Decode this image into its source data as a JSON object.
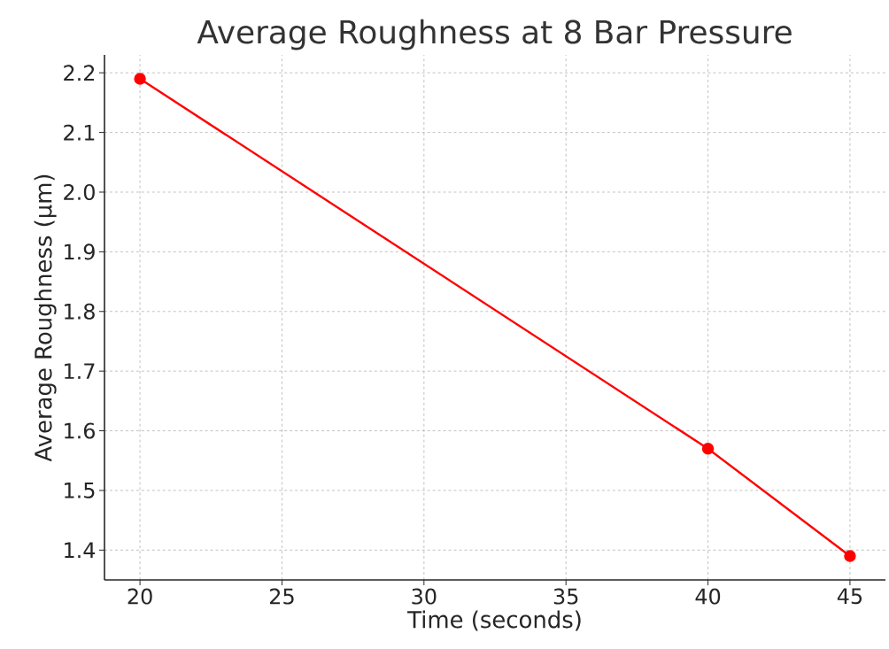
{
  "chart_data": {
    "type": "line",
    "title": "Average Roughness at 8 Bar Pressure",
    "xlabel": "Time (seconds)",
    "ylabel": "Average Roughness (µm)",
    "x": [
      20,
      40,
      45
    ],
    "values": [
      2.19,
      1.57,
      1.39
    ],
    "color": "#ff0000",
    "xlim": [
      18.75,
      46.25
    ],
    "ylim": [
      1.35,
      2.23
    ],
    "xticks": [
      20,
      25,
      30,
      35,
      40,
      45
    ],
    "yticks": [
      1.4,
      1.5,
      1.6,
      1.7,
      1.8,
      1.9,
      {
        "value": 2.0,
        "label": "2.0"
      },
      2.1,
      2.2
    ],
    "grid": true,
    "marker": "circle",
    "line_style": "solid"
  }
}
